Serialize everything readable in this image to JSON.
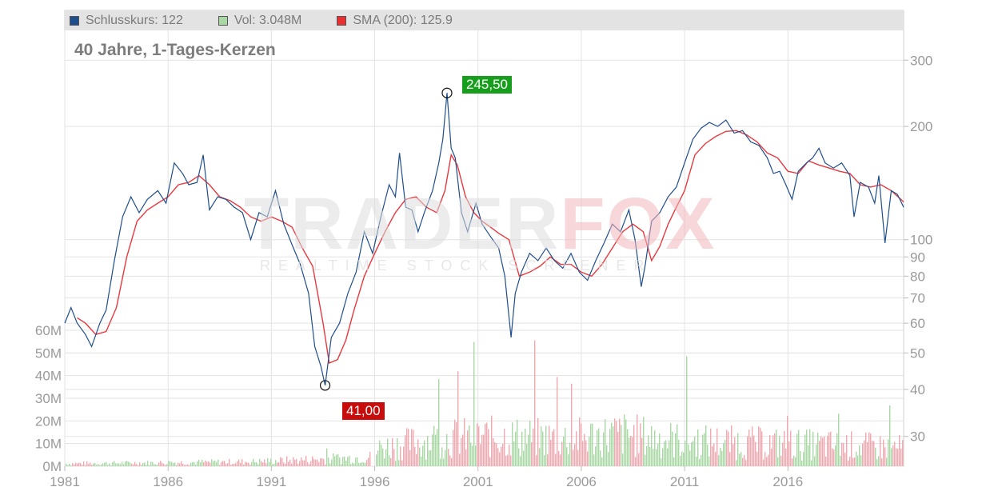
{
  "legend": [
    {
      "label": "Schlusskurs: 122",
      "color": "#1f4e8c"
    },
    {
      "label": "Vol: 3.048M",
      "color": "#a9d8a4"
    },
    {
      "label": "SMA (200): 125.9",
      "color": "#e83030"
    }
  ],
  "colors": {
    "price_line": "#1f4e8c",
    "sma_line": "#e8393f",
    "volume_up": "#a9d8a4",
    "volume_down": "#f2a8b0",
    "grid": "#e3e3e3",
    "axis_text": "#9a9a9a",
    "high_callout": "#189e1d",
    "low_callout": "#c80c0c"
  },
  "watermark": {
    "text_main": "TRADER",
    "text_accent": "FOX",
    "subtitle": "REALTIME STOCK SCREENER"
  },
  "callouts": {
    "high": "245,50",
    "low": "41,00"
  },
  "chart_data": {
    "type": "line",
    "title": "40 Jahre, 1-Tages-Kerzen",
    "x_tick_labels": [
      "1981",
      "1986",
      "1991",
      "1996",
      "2001",
      "2006",
      "2011",
      "2016"
    ],
    "x_ticks": [
      1981,
      1986,
      1991,
      1996,
      2001,
      2006,
      2011,
      2016
    ],
    "xlim": [
      1981,
      2021.6
    ],
    "price_axis": {
      "scale": "log",
      "position": "right",
      "ylim": [
        25,
        360
      ],
      "ticks": [
        30,
        40,
        50,
        60,
        70,
        80,
        90,
        100,
        200,
        300
      ],
      "tick_labels": [
        "30",
        "40",
        "50",
        "60",
        "70",
        "80",
        "90",
        "100",
        "200",
        "300"
      ]
    },
    "volume_axis": {
      "position": "left",
      "ylim": [
        0,
        60000000
      ],
      "ticks": [
        0,
        10000000,
        20000000,
        30000000,
        40000000,
        50000000,
        60000000
      ],
      "tick_labels": [
        "0M",
        "10M",
        "20M",
        "30M",
        "40M",
        "50M",
        "60M"
      ]
    },
    "grid": true,
    "series": [
      {
        "name": "Schlusskurs",
        "type": "line",
        "x": [
          1981.0,
          1981.3,
          1981.6,
          1982.0,
          1982.3,
          1982.7,
          1983.0,
          1983.4,
          1983.8,
          1984.2,
          1984.6,
          1985.0,
          1985.5,
          1985.9,
          1986.3,
          1986.7,
          1987.0,
          1987.4,
          1987.7,
          1988.0,
          1988.4,
          1988.8,
          1989.2,
          1989.6,
          1990.0,
          1990.4,
          1990.8,
          1991.2,
          1991.6,
          1992.0,
          1992.4,
          1992.8,
          1993.1,
          1993.4,
          1993.6,
          1993.9,
          1994.3,
          1994.7,
          1995.1,
          1995.5,
          1995.9,
          1996.3,
          1996.7,
          1997.0,
          1997.2,
          1997.5,
          1997.8,
          1998.1,
          1998.4,
          1998.8,
          1999.1,
          1999.3,
          1999.5,
          1999.7,
          1999.9,
          2000.2,
          2000.5,
          2000.9,
          2001.2,
          2001.6,
          2002.0,
          2002.3,
          2002.6,
          2002.8,
          2003.1,
          2003.5,
          2003.9,
          2004.3,
          2004.7,
          2005.1,
          2005.5,
          2005.9,
          2006.3,
          2006.7,
          2007.1,
          2007.5,
          2007.9,
          2008.3,
          2008.6,
          2008.9,
          2009.1,
          2009.4,
          2009.8,
          2010.2,
          2010.6,
          2011.0,
          2011.4,
          2011.8,
          2012.2,
          2012.6,
          2013.0,
          2013.4,
          2013.8,
          2014.2,
          2014.6,
          2015.0,
          2015.3,
          2015.6,
          2015.9,
          2016.2,
          2016.5,
          2016.9,
          2017.2,
          2017.5,
          2017.8,
          2018.2,
          2018.6,
          2019.0,
          2019.2,
          2019.5,
          2019.9,
          2020.2,
          2020.4,
          2020.7,
          2021.0,
          2021.3,
          2021.6
        ],
        "values": [
          60,
          66,
          60,
          56,
          52,
          60,
          65,
          88,
          115,
          130,
          118,
          128,
          135,
          125,
          160,
          150,
          140,
          142,
          168,
          120,
          130,
          128,
          122,
          118,
          100,
          118,
          115,
          135,
          110,
          97,
          86,
          72,
          52,
          46,
          41,
          55,
          60,
          72,
          82,
          105,
          92,
          115,
          140,
          130,
          170,
          122,
          120,
          105,
          118,
          135,
          160,
          185,
          245.5,
          175,
          165,
          118,
          105,
          125,
          110,
          102,
          95,
          80,
          55,
          72,
          82,
          92,
          88,
          95,
          88,
          84,
          92,
          82,
          78,
          88,
          98,
          110,
          105,
          120,
          100,
          75,
          86,
          112,
          118,
          130,
          138,
          160,
          185,
          198,
          205,
          200,
          208,
          192,
          195,
          182,
          178,
          165,
          150,
          152,
          140,
          128,
          152,
          160,
          165,
          175,
          160,
          155,
          160,
          148,
          115,
          142,
          138,
          125,
          148,
          98,
          135,
          132,
          122
        ]
      },
      {
        "name": "SMA (200)",
        "type": "line",
        "x": [
          1981.6,
          1982.0,
          1982.5,
          1983.0,
          1983.5,
          1984.0,
          1984.5,
          1985.0,
          1985.5,
          1986.0,
          1986.5,
          1987.0,
          1987.5,
          1988.0,
          1988.5,
          1989.0,
          1989.5,
          1990.0,
          1990.5,
          1991.0,
          1991.5,
          1992.0,
          1992.5,
          1993.0,
          1993.5,
          1993.8,
          1994.2,
          1994.6,
          1995.0,
          1995.5,
          1996.0,
          1996.5,
          1997.0,
          1997.5,
          1998.0,
          1998.5,
          1999.0,
          1999.4,
          1999.7,
          2000.0,
          2000.4,
          2000.8,
          2001.2,
          2001.6,
          2002.0,
          2002.5,
          2003.0,
          2003.5,
          2004.0,
          2004.5,
          2005.0,
          2005.5,
          2006.0,
          2006.5,
          2007.0,
          2007.5,
          2008.0,
          2008.5,
          2009.0,
          2009.4,
          2009.8,
          2010.2,
          2010.6,
          2011.0,
          2011.5,
          2012.0,
          2012.5,
          2013.0,
          2013.5,
          2014.0,
          2014.5,
          2015.0,
          2015.5,
          2016.0,
          2016.5,
          2017.0,
          2017.5,
          2018.0,
          2018.5,
          2019.0,
          2019.5,
          2020.0,
          2020.5,
          2021.0,
          2021.6
        ],
        "values": [
          62,
          60,
          56,
          57,
          66,
          90,
          112,
          120,
          125,
          130,
          140,
          142,
          148,
          140,
          130,
          127,
          122,
          115,
          112,
          115,
          112,
          108,
          95,
          85,
          60,
          47,
          48,
          54,
          65,
          80,
          92,
          105,
          118,
          128,
          130,
          122,
          118,
          135,
          168,
          158,
          130,
          118,
          112,
          108,
          104,
          100,
          80,
          82,
          85,
          90,
          86,
          86,
          82,
          80,
          86,
          95,
          105,
          110,
          105,
          88,
          96,
          110,
          122,
          135,
          168,
          180,
          188,
          194,
          195,
          190,
          182,
          170,
          165,
          152,
          150,
          162,
          158,
          155,
          152,
          150,
          140,
          138,
          140,
          135,
          126
        ]
      }
    ],
    "annotations": [
      {
        "label": "245,50",
        "x": 1999.5,
        "y": 245.5,
        "kind": "high"
      },
      {
        "label": "41,00",
        "x": 1993.6,
        "y": 41.0,
        "kind": "low"
      }
    ],
    "volume_profile": {
      "x": [
        1981,
        1985,
        1990,
        1993,
        1995.8,
        1996.2,
        1999,
        2002,
        2005,
        2008,
        2011,
        2015,
        2019,
        2021.6
      ],
      "values": [
        1200000,
        1500000,
        2000000,
        3000000,
        4000000,
        8000000,
        12000000,
        13000000,
        12000000,
        14000000,
        11000000,
        10000000,
        9000000,
        8000000
      ]
    }
  }
}
